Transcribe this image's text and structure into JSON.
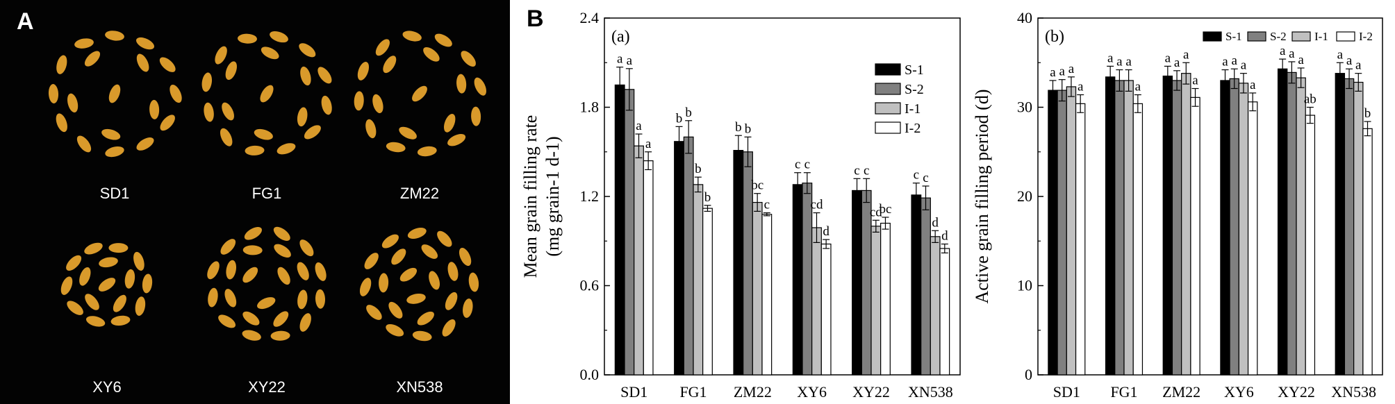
{
  "panel_a": {
    "letter": "A",
    "varieties": [
      "SD1",
      "FG1",
      "ZM22",
      "XY6",
      "XY22",
      "XN538"
    ],
    "seed_color": "#d99a2b",
    "background": "#030303"
  },
  "panel_b": {
    "letter": "B"
  },
  "legend_entries": [
    "S-1",
    "S-2",
    "I-1",
    "I-2"
  ],
  "series_colors": [
    "#000000",
    "#808080",
    "#c0c0c0",
    "#ffffff"
  ],
  "chart_data": [
    {
      "type": "bar",
      "panel": "(a)",
      "title": "",
      "ylabel": "Mean grain filling rate",
      "ylabel_unit": "(mg grain-1 d-1)",
      "categories": [
        "SD1",
        "FG1",
        "ZM22",
        "XY6",
        "XY22",
        "XN538"
      ],
      "ylim": [
        0,
        2.4
      ],
      "yticks": [
        "0.0",
        "0.6",
        "1.2",
        "1.8",
        "2.4"
      ],
      "series": [
        {
          "name": "S-1",
          "values": [
            1.95,
            1.57,
            1.51,
            1.28,
            1.24,
            1.21
          ],
          "errors": [
            0.12,
            0.1,
            0.1,
            0.08,
            0.08,
            0.08
          ],
          "letters": [
            "a",
            "b",
            "b",
            "c",
            "c",
            "c"
          ]
        },
        {
          "name": "S-2",
          "values": [
            1.92,
            1.6,
            1.5,
            1.29,
            1.24,
            1.19
          ],
          "errors": [
            0.14,
            0.11,
            0.1,
            0.07,
            0.08,
            0.08
          ],
          "letters": [
            "a",
            "b",
            "b",
            "c",
            "c",
            "c"
          ]
        },
        {
          "name": "I-1",
          "values": [
            1.54,
            1.28,
            1.16,
            0.99,
            1.0,
            0.93
          ],
          "errors": [
            0.08,
            0.05,
            0.06,
            0.1,
            0.04,
            0.04
          ],
          "letters": [
            "a",
            "b",
            "bc",
            "cd",
            "cd",
            "d"
          ]
        },
        {
          "name": "I-2",
          "values": [
            1.44,
            1.12,
            1.08,
            0.88,
            1.02,
            0.85
          ],
          "errors": [
            0.06,
            0.02,
            0.01,
            0.03,
            0.04,
            0.03
          ],
          "letters": [
            "a",
            "b",
            "c",
            "d",
            "bc",
            "d"
          ]
        }
      ]
    },
    {
      "type": "bar",
      "panel": "(b)",
      "title": "",
      "ylabel": "Active grain filling period (d)",
      "categories": [
        "SD1",
        "FG1",
        "ZM22",
        "XY6",
        "XY22",
        "XN538"
      ],
      "ylim": [
        0,
        40
      ],
      "yticks": [
        "0",
        "10",
        "20",
        "30",
        "40"
      ],
      "series": [
        {
          "name": "S-1",
          "values": [
            31.9,
            33.4,
            33.5,
            33.0,
            34.3,
            33.8
          ],
          "errors": [
            1.1,
            1.2,
            1.1,
            1.2,
            1.1,
            1.2
          ],
          "letters": [
            "a",
            "a",
            "a",
            "a",
            "a",
            "a"
          ]
        },
        {
          "name": "S-2",
          "values": [
            31.9,
            33.0,
            33.0,
            33.2,
            33.9,
            33.2
          ],
          "errors": [
            1.2,
            1.2,
            1.1,
            1.1,
            1.2,
            1.1
          ],
          "letters": [
            "a",
            "a",
            "a",
            "a",
            "a",
            "a"
          ]
        },
        {
          "name": "I-1",
          "values": [
            32.3,
            33.0,
            33.8,
            32.7,
            33.3,
            32.8
          ],
          "errors": [
            1.1,
            1.2,
            1.2,
            1.1,
            1.1,
            1.0
          ],
          "letters": [
            "a",
            "a",
            "a",
            "a",
            "a",
            "a"
          ]
        },
        {
          "name": "I-2",
          "values": [
            30.4,
            30.4,
            31.1,
            30.6,
            29.1,
            27.6
          ],
          "errors": [
            1.0,
            1.0,
            1.0,
            1.0,
            0.9,
            0.8
          ],
          "letters": [
            "a",
            "a",
            "a",
            "a",
            "ab",
            "b"
          ]
        }
      ]
    }
  ]
}
